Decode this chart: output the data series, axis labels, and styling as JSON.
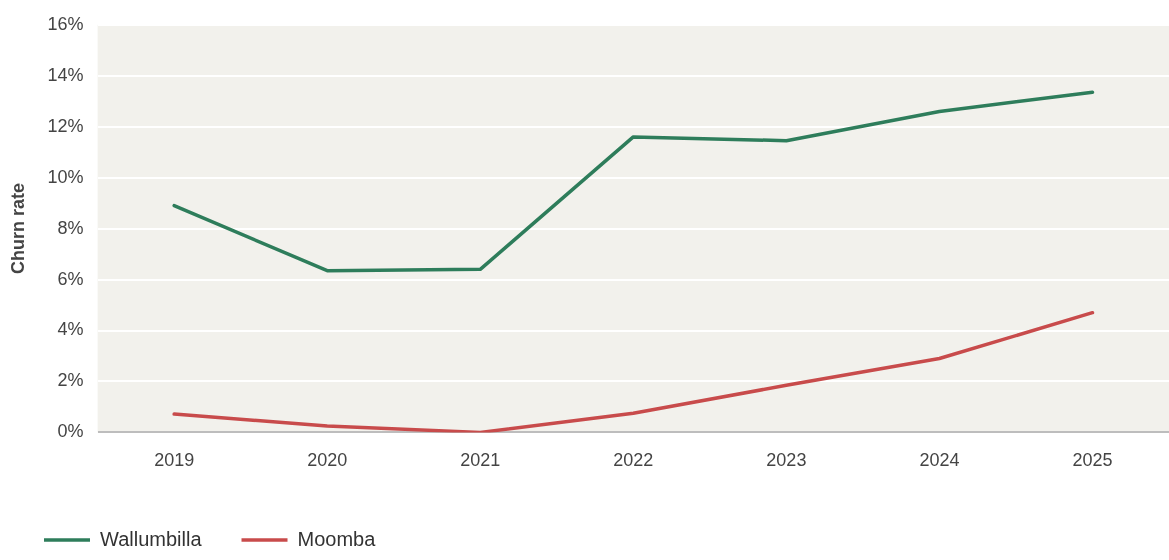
{
  "chart_data": {
    "type": "line",
    "ylabel": "Churn rate",
    "categories": [
      "2019",
      "2020",
      "2021",
      "2022",
      "2023",
      "2024",
      "2025"
    ],
    "series": [
      {
        "name": "Wallumbilla",
        "color": "#2e7d5b",
        "values": [
          8.9,
          6.35,
          6.4,
          11.6,
          11.45,
          12.6,
          13.35
        ]
      },
      {
        "name": "Moomba",
        "color": "#c84b4b",
        "values": [
          0.72,
          0.25,
          0,
          0.75,
          1.85,
          2.9,
          4.7
        ]
      }
    ],
    "ylim": [
      0,
      16
    ],
    "yticks": [
      {
        "value": 0,
        "label": "0%"
      },
      {
        "value": 2,
        "label": "2%"
      },
      {
        "value": 4,
        "label": "4%"
      },
      {
        "value": 6,
        "label": "6%"
      },
      {
        "value": 8,
        "label": "8%"
      },
      {
        "value": 10,
        "label": "10%"
      },
      {
        "value": 12,
        "label": "12%"
      },
      {
        "value": 14,
        "label": "14%"
      },
      {
        "value": 16,
        "label": "16%"
      }
    ],
    "grid": "y",
    "legend": "bottom left",
    "marker": "none",
    "line_style": "solid"
  }
}
